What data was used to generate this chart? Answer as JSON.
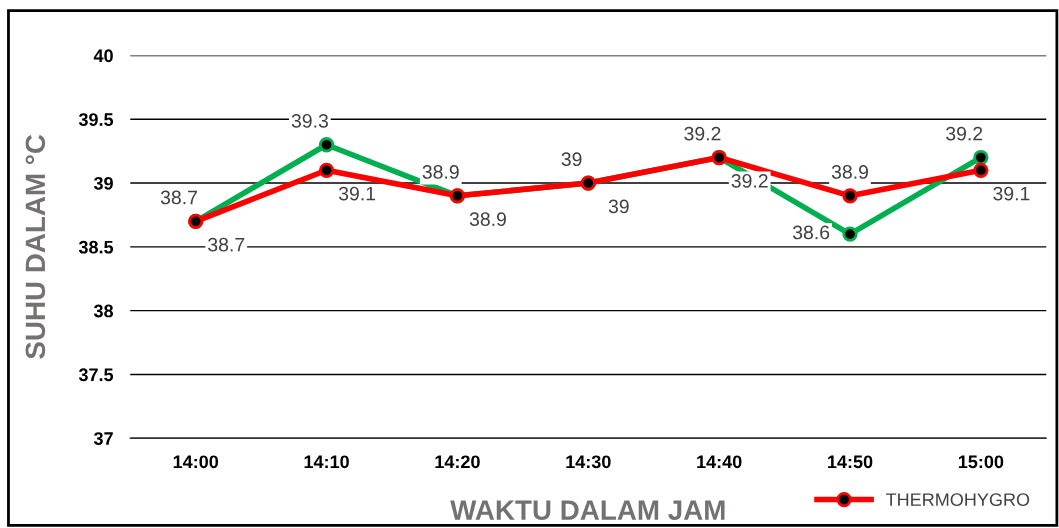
{
  "chart_data": {
    "type": "line",
    "xlabel": "WAKTU DALAM JAM",
    "ylabel": "SUHU DALAM °C",
    "categories": [
      "14:00",
      "14:10",
      "14:20",
      "14:30",
      "14:40",
      "14:50",
      "15:00"
    ],
    "series": [
      {
        "color": "#00b050",
        "values": [
          38.7,
          39.3,
          38.9,
          39,
          39.2,
          38.6,
          39.2
        ]
      },
      {
        "name": "THERMOHYGRO",
        "color": "#ff0000",
        "values": [
          38.7,
          39.1,
          38.9,
          39,
          39.2,
          38.9,
          39.1
        ]
      }
    ],
    "ylim": [
      37,
      40
    ],
    "yticks": [
      37,
      37.5,
      38,
      38.5,
      39,
      39.5,
      40
    ],
    "grid": "y",
    "legend": "bottom right",
    "marker": "circle",
    "line_style": "solid",
    "data_labels": true
  }
}
